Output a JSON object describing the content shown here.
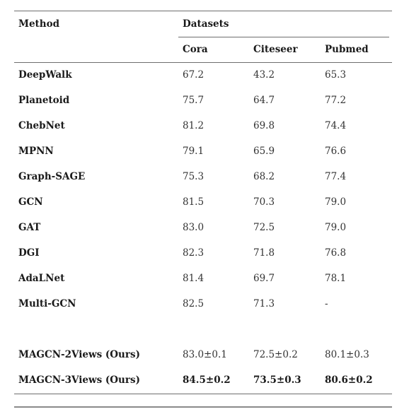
{
  "table": {
    "header": {
      "method": "Method",
      "datasets": "Datasets",
      "columns": [
        "Cora",
        "Citeseer",
        "Pubmed"
      ]
    },
    "rows": [
      {
        "method": "DeepWalk",
        "cora": "67.2",
        "citeseer": "43.2",
        "pubmed": "65.3"
      },
      {
        "method": "Planetoid",
        "cora": "75.7",
        "citeseer": "64.7",
        "pubmed": "77.2"
      },
      {
        "method": "ChebNet",
        "cora": "81.2",
        "citeseer": "69.8",
        "pubmed": "74.4"
      },
      {
        "method": "MPNN",
        "cora": "79.1",
        "citeseer": "65.9",
        "pubmed": "76.6"
      },
      {
        "method": "Graph-SAGE",
        "cora": "75.3",
        "citeseer": "68.2",
        "pubmed": "77.4"
      },
      {
        "method": "GCN",
        "cora": "81.5",
        "citeseer": "70.3",
        "pubmed": "79.0"
      },
      {
        "method": "GAT",
        "cora": "83.0",
        "citeseer": "72.5",
        "pubmed": "79.0"
      },
      {
        "method": "DGI",
        "cora": "82.3",
        "citeseer": "71.8",
        "pubmed": "76.8"
      },
      {
        "method": "AdaLNet",
        "cora": "81.4",
        "citeseer": "69.7",
        "pubmed": "78.1"
      },
      {
        "method": "Multi-GCN",
        "cora": "82.5",
        "citeseer": "71.3",
        "pubmed": "-"
      }
    ],
    "ours": [
      {
        "method": "MAGCN-2Views (Ours)",
        "cora": "83.0±0.1",
        "citeseer": "72.5±0.2",
        "pubmed": "80.1±0.3",
        "bold": false
      },
      {
        "method": "MAGCN-3Views (Ours)",
        "cora": "84.5±0.2",
        "citeseer": "73.5±0.3",
        "pubmed": "80.6±0.2",
        "bold": true
      }
    ]
  }
}
